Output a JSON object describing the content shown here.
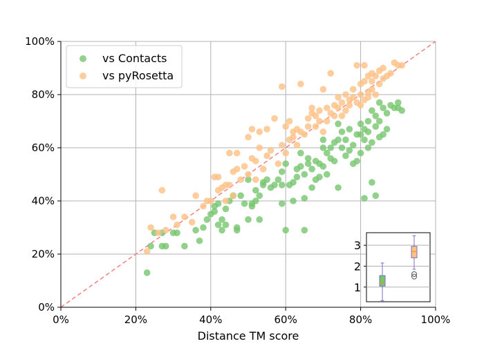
{
  "chart_data": [
    {
      "type": "scatter",
      "xlabel": "Distance TM score",
      "ylabel": "",
      "xlim": [
        0,
        1
      ],
      "ylim": [
        0,
        1
      ],
      "x_ticks": [
        "0%",
        "20%",
        "40%",
        "60%",
        "80%",
        "100%"
      ],
      "y_ticks": [
        "0%",
        "20%",
        "40%",
        "60%",
        "80%",
        "100%"
      ],
      "grid": true,
      "legend_position": "top-left",
      "reference_line": {
        "label": "",
        "from": [
          0,
          0
        ],
        "to": [
          1,
          1
        ],
        "style": "dashed",
        "color": "#f08080"
      },
      "series": [
        {
          "name": "vs Contacts",
          "color": "#77c66e",
          "points": [
            [
              0.23,
              0.13
            ],
            [
              0.24,
              0.23
            ],
            [
              0.25,
              0.28
            ],
            [
              0.27,
              0.23
            ],
            [
              0.27,
              0.28
            ],
            [
              0.28,
              0.23
            ],
            [
              0.3,
              0.28
            ],
            [
              0.31,
              0.28
            ],
            [
              0.33,
              0.23
            ],
            [
              0.36,
              0.29
            ],
            [
              0.37,
              0.25
            ],
            [
              0.38,
              0.3
            ],
            [
              0.39,
              0.33
            ],
            [
              0.4,
              0.35
            ],
            [
              0.41,
              0.36
            ],
            [
              0.41,
              0.38
            ],
            [
              0.42,
              0.31
            ],
            [
              0.42,
              0.39
            ],
            [
              0.43,
              0.29
            ],
            [
              0.43,
              0.33
            ],
            [
              0.44,
              0.37
            ],
            [
              0.44,
              0.31
            ],
            [
              0.45,
              0.4
            ],
            [
              0.46,
              0.42
            ],
            [
              0.47,
              0.29
            ],
            [
              0.47,
              0.3
            ],
            [
              0.48,
              0.42
            ],
            [
              0.49,
              0.39
            ],
            [
              0.5,
              0.48
            ],
            [
              0.5,
              0.33
            ],
            [
              0.51,
              0.39
            ],
            [
              0.51,
              0.38
            ],
            [
              0.52,
              0.44
            ],
            [
              0.52,
              0.4
            ],
            [
              0.53,
              0.33
            ],
            [
              0.53,
              0.42
            ],
            [
              0.54,
              0.46
            ],
            [
              0.54,
              0.47
            ],
            [
              0.55,
              0.48
            ],
            [
              0.56,
              0.45
            ],
            [
              0.57,
              0.46
            ],
            [
              0.58,
              0.48
            ],
            [
              0.59,
              0.46
            ],
            [
              0.59,
              0.39
            ],
            [
              0.59,
              0.51
            ],
            [
              0.6,
              0.29
            ],
            [
              0.6,
              0.54
            ],
            [
              0.61,
              0.46
            ],
            [
              0.62,
              0.4
            ],
            [
              0.62,
              0.47
            ],
            [
              0.63,
              0.49
            ],
            [
              0.63,
              0.52
            ],
            [
              0.64,
              0.53
            ],
            [
              0.64,
              0.58
            ],
            [
              0.65,
              0.41
            ],
            [
              0.65,
              0.29
            ],
            [
              0.65,
              0.5
            ],
            [
              0.66,
              0.54
            ],
            [
              0.66,
              0.56
            ],
            [
              0.67,
              0.45
            ],
            [
              0.67,
              0.52
            ],
            [
              0.68,
              0.48
            ],
            [
              0.68,
              0.55
            ],
            [
              0.69,
              0.54
            ],
            [
              0.69,
              0.49
            ],
            [
              0.7,
              0.6
            ],
            [
              0.7,
              0.53
            ],
            [
              0.7,
              0.63
            ],
            [
              0.71,
              0.5
            ],
            [
              0.71,
              0.58
            ],
            [
              0.72,
              0.56
            ],
            [
              0.72,
              0.6
            ],
            [
              0.73,
              0.55
            ],
            [
              0.73,
              0.62
            ],
            [
              0.74,
              0.45
            ],
            [
              0.74,
              0.63
            ],
            [
              0.74,
              0.69
            ],
            [
              0.75,
              0.6
            ],
            [
              0.75,
              0.66
            ],
            [
              0.76,
              0.57
            ],
            [
              0.76,
              0.63
            ],
            [
              0.77,
              0.59
            ],
            [
              0.77,
              0.67
            ],
            [
              0.78,
              0.54
            ],
            [
              0.78,
              0.61
            ],
            [
              0.79,
              0.65
            ],
            [
              0.79,
              0.55
            ],
            [
              0.8,
              0.58
            ],
            [
              0.8,
              0.65
            ],
            [
              0.8,
              0.69
            ],
            [
              0.81,
              0.41
            ],
            [
              0.81,
              0.67
            ],
            [
              0.81,
              0.63
            ],
            [
              0.82,
              0.6
            ],
            [
              0.82,
              0.7
            ],
            [
              0.82,
              0.66
            ],
            [
              0.83,
              0.47
            ],
            [
              0.83,
              0.74
            ],
            [
              0.83,
              0.62
            ],
            [
              0.84,
              0.42
            ],
            [
              0.84,
              0.68
            ],
            [
              0.84,
              0.72
            ],
            [
              0.85,
              0.64
            ],
            [
              0.85,
              0.7
            ],
            [
              0.85,
              0.77
            ],
            [
              0.86,
              0.65
            ],
            [
              0.86,
              0.75
            ],
            [
              0.87,
              0.67
            ],
            [
              0.87,
              0.73
            ],
            [
              0.88,
              0.76
            ],
            [
              0.89,
              0.75
            ],
            [
              0.9,
              0.77
            ],
            [
              0.9,
              0.75
            ],
            [
              0.91,
              0.74
            ]
          ]
        },
        {
          "name": "vs pyRosetta",
          "color": "#fdc086",
          "points": [
            [
              0.23,
              0.21
            ],
            [
              0.24,
              0.3
            ],
            [
              0.26,
              0.28
            ],
            [
              0.27,
              0.44
            ],
            [
              0.28,
              0.29
            ],
            [
              0.3,
              0.34
            ],
            [
              0.31,
              0.31
            ],
            [
              0.33,
              0.34
            ],
            [
              0.35,
              0.32
            ],
            [
              0.36,
              0.42
            ],
            [
              0.38,
              0.38
            ],
            [
              0.39,
              0.4
            ],
            [
              0.4,
              0.4
            ],
            [
              0.41,
              0.49
            ],
            [
              0.42,
              0.44
            ],
            [
              0.42,
              0.49
            ],
            [
              0.43,
              0.45
            ],
            [
              0.44,
              0.4
            ],
            [
              0.44,
              0.46
            ],
            [
              0.45,
              0.58
            ],
            [
              0.45,
              0.46
            ],
            [
              0.46,
              0.42
            ],
            [
              0.46,
              0.51
            ],
            [
              0.47,
              0.52
            ],
            [
              0.47,
              0.58
            ],
            [
              0.48,
              0.48
            ],
            [
              0.49,
              0.53
            ],
            [
              0.5,
              0.64
            ],
            [
              0.5,
              0.5
            ],
            [
              0.51,
              0.67
            ],
            [
              0.51,
              0.56
            ],
            [
              0.52,
              0.55
            ],
            [
              0.52,
              0.48
            ],
            [
              0.53,
              0.66
            ],
            [
              0.53,
              0.6
            ],
            [
              0.54,
              0.52
            ],
            [
              0.55,
              0.57
            ],
            [
              0.55,
              0.67
            ],
            [
              0.56,
              0.59
            ],
            [
              0.57,
              0.71
            ],
            [
              0.58,
              0.54
            ],
            [
              0.59,
              0.61
            ],
            [
              0.59,
              0.83
            ],
            [
              0.6,
              0.68
            ],
            [
              0.6,
              0.58
            ],
            [
              0.61,
              0.63
            ],
            [
              0.61,
              0.7
            ],
            [
              0.62,
              0.64
            ],
            [
              0.62,
              0.66
            ],
            [
              0.63,
              0.67
            ],
            [
              0.63,
              0.61
            ],
            [
              0.64,
              0.66
            ],
            [
              0.64,
              0.84
            ],
            [
              0.65,
              0.65
            ],
            [
              0.66,
              0.68
            ],
            [
              0.66,
              0.71
            ],
            [
              0.67,
              0.73
            ],
            [
              0.67,
              0.75
            ],
            [
              0.68,
              0.68
            ],
            [
              0.68,
              0.72
            ],
            [
              0.69,
              0.7
            ],
            [
              0.69,
              0.74
            ],
            [
              0.7,
              0.66
            ],
            [
              0.7,
              0.82
            ],
            [
              0.71,
              0.75
            ],
            [
              0.71,
              0.7
            ],
            [
              0.72,
              0.73
            ],
            [
              0.72,
              0.88
            ],
            [
              0.73,
              0.76
            ],
            [
              0.73,
              0.72
            ],
            [
              0.74,
              0.79
            ],
            [
              0.74,
              0.75
            ],
            [
              0.75,
              0.77
            ],
            [
              0.75,
              0.72
            ],
            [
              0.76,
              0.74
            ],
            [
              0.76,
              0.8
            ],
            [
              0.77,
              0.78
            ],
            [
              0.77,
              0.76
            ],
            [
              0.78,
              0.82
            ],
            [
              0.78,
              0.79
            ],
            [
              0.79,
              0.77
            ],
            [
              0.79,
              0.91
            ],
            [
              0.8,
              0.8
            ],
            [
              0.8,
              0.84
            ],
            [
              0.8,
              0.76
            ],
            [
              0.81,
              0.78
            ],
            [
              0.81,
              0.85
            ],
            [
              0.81,
              0.91
            ],
            [
              0.82,
              0.81
            ],
            [
              0.82,
              0.87
            ],
            [
              0.82,
              0.79
            ],
            [
              0.83,
              0.82
            ],
            [
              0.83,
              0.88
            ],
            [
              0.83,
              0.85
            ],
            [
              0.84,
              0.87
            ],
            [
              0.84,
              0.8
            ],
            [
              0.85,
              0.89
            ],
            [
              0.85,
              0.84
            ],
            [
              0.86,
              0.86
            ],
            [
              0.86,
              0.9
            ],
            [
              0.87,
              0.87
            ],
            [
              0.88,
              0.88
            ],
            [
              0.89,
              0.92
            ],
            [
              0.9,
              0.91
            ],
            [
              0.91,
              0.91
            ]
          ]
        }
      ]
    },
    {
      "type": "box",
      "xlabel": "",
      "ylabel": "",
      "ylim": [
        0.3,
        3.6
      ],
      "y_ticks": [
        "1",
        "2",
        "3"
      ],
      "grid": true,
      "boxes": [
        {
          "color": "#77c66e",
          "min": 0.35,
          "q1": 1.05,
          "median": 1.2,
          "q3": 1.55,
          "max": 2.15,
          "outliers": []
        },
        {
          "color": "#fdc086",
          "min": 1.85,
          "q1": 2.4,
          "median": 2.7,
          "q3": 2.95,
          "max": 3.45,
          "outliers": [
            1.5,
            1.62
          ]
        }
      ]
    }
  ]
}
